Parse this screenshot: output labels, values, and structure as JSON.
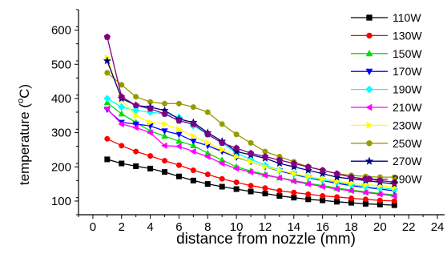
{
  "chart_data": {
    "type": "line",
    "xlabel": "distance from nozzle (mm)",
    "ylabel": "temperature (",
    "ylabel_sup": "o",
    "ylabel_tail": "C)",
    "xlim": [
      -1,
      24.5
    ],
    "ylim": [
      60,
      660
    ],
    "x_ticks": [
      0,
      2,
      4,
      6,
      8,
      10,
      12,
      14,
      16,
      18,
      20,
      22,
      24
    ],
    "y_ticks": [
      100,
      200,
      300,
      400,
      500,
      600
    ],
    "x": [
      1,
      2,
      3,
      4,
      5,
      6,
      7,
      8,
      9,
      10,
      11,
      12,
      13,
      14,
      15,
      16,
      17,
      18,
      19,
      20,
      21
    ],
    "legend_position": "top-right",
    "grid": false,
    "series": [
      {
        "name": "110W",
        "color": "#000000",
        "marker": "square",
        "values": [
          222,
          210,
          202,
          195,
          185,
          172,
          160,
          150,
          142,
          135,
          128,
          122,
          115,
          110,
          105,
          102,
          98,
          95,
          92,
          90,
          88
        ]
      },
      {
        "name": "130W",
        "color": "#ff0000",
        "marker": "circle",
        "values": [
          282,
          262,
          245,
          232,
          218,
          205,
          190,
          178,
          165,
          155,
          145,
          138,
          130,
          125,
          120,
          115,
          112,
          108,
          105,
          102,
          100
        ]
      },
      {
        "name": "150W",
        "color": "#00dd00",
        "marker": "triangle-up",
        "values": [
          388,
          355,
          330,
          305,
          290,
          275,
          262,
          240,
          220,
          200,
          188,
          178,
          168,
          160,
          152,
          145,
          138,
          132,
          127,
          122,
          118
        ]
      },
      {
        "name": "170W",
        "color": "#0000ff",
        "marker": "triangle-down",
        "values": [
          368,
          330,
          325,
          320,
          305,
          295,
          275,
          262,
          245,
          228,
          215,
          200,
          188,
          178,
          168,
          160,
          152,
          145,
          140,
          135,
          130
        ]
      },
      {
        "name": "190W",
        "color": "#00ffff",
        "marker": "diamond",
        "values": [
          400,
          375,
          365,
          360,
          355,
          345,
          320,
          295,
          270,
          240,
          222,
          205,
          190,
          180,
          170,
          162,
          155,
          148,
          142,
          138,
          135
        ]
      },
      {
        "name": "210W",
        "color": "#ff00ff",
        "marker": "triangle-left",
        "values": [
          370,
          325,
          315,
          300,
          262,
          260,
          245,
          230,
          210,
          195,
          185,
          175,
          168,
          158,
          150,
          142,
          135,
          130,
          125,
          120,
          115
        ]
      },
      {
        "name": "230W",
        "color": "#ffff00",
        "marker": "triangle-right",
        "values": [
          520,
          395,
          350,
          330,
          325,
          310,
          290,
          270,
          250,
          230,
          215,
          200,
          190,
          180,
          172,
          165,
          158,
          152,
          148,
          145,
          140
        ]
      },
      {
        "name": "250W",
        "color": "#999900",
        "marker": "circle",
        "values": [
          475,
          440,
          405,
          390,
          385,
          385,
          375,
          360,
          325,
          295,
          270,
          245,
          230,
          215,
          200,
          190,
          180,
          175,
          172,
          170,
          170
        ]
      },
      {
        "name": "270W",
        "color": "#000080",
        "marker": "star",
        "values": [
          510,
          400,
          380,
          375,
          365,
          340,
          330,
          300,
          275,
          245,
          235,
          225,
          210,
          200,
          190,
          180,
          170,
          165,
          160,
          155,
          150
        ]
      },
      {
        "name": "290W",
        "color": "#800080",
        "marker": "pentagon",
        "values": [
          580,
          405,
          380,
          370,
          355,
          335,
          325,
          295,
          270,
          255,
          240,
          230,
          220,
          210,
          200,
          190,
          180,
          170,
          165,
          160,
          155
        ]
      }
    ]
  }
}
